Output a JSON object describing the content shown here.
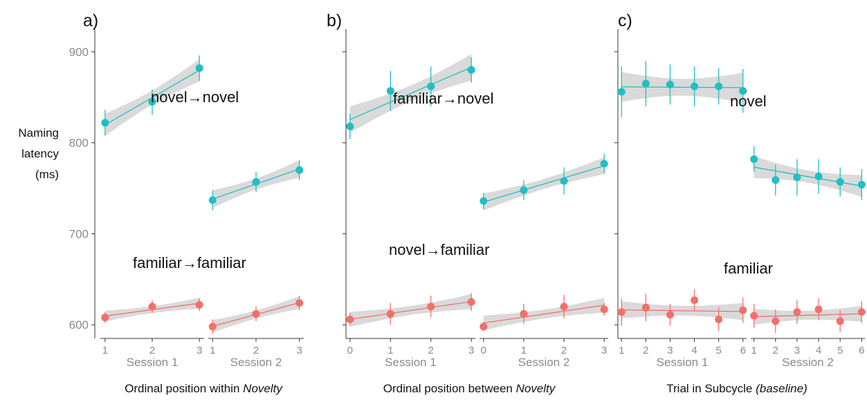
{
  "y_axis_label": [
    "Naming",
    "latency",
    "(ms)"
  ],
  "colors": {
    "novel": "#1fbfc3",
    "familiar": "#f0706a",
    "band": "#d4d4d4",
    "axis": "#333333"
  },
  "chart_data": [
    {
      "type": "scatter",
      "panel_label": "a)",
      "xlabel": "Ordinal position within",
      "xlabel_italic": "Novelty",
      "ylim": [
        585,
        925
      ],
      "yticks": [
        600,
        700,
        800,
        900
      ],
      "show_y_tick_labels": true,
      "facets": [
        {
          "label": "Session 1",
          "x": [
            1,
            2,
            3
          ],
          "xlim": [
            0.9,
            3.1
          ],
          "series": [
            {
              "group": "novel",
              "values": [
                822,
                845,
                882
              ],
              "err_lo": [
                14,
                14,
                14
              ],
              "err_hi": [
                14,
                14,
                14
              ]
            },
            {
              "group": "familiar",
              "values": [
                608,
                620,
                622
              ],
              "err_lo": [
                6,
                7,
                7
              ],
              "err_hi": [
                6,
                7,
                7
              ]
            }
          ]
        },
        {
          "label": "Session 2",
          "x": [
            1,
            2,
            3
          ],
          "xlim": [
            0.9,
            3.1
          ],
          "series": [
            {
              "group": "novel",
              "values": [
                737,
                757,
                770
              ],
              "err_lo": [
                11,
                11,
                11
              ],
              "err_hi": [
                11,
                11,
                11
              ]
            },
            {
              "group": "familiar",
              "values": [
                598,
                612,
                624
              ],
              "err_lo": [
                8,
                8,
                8
              ],
              "err_hi": [
                8,
                8,
                8
              ]
            }
          ]
        }
      ],
      "annotations": [
        {
          "from": "novel",
          "to": "novel"
        },
        {
          "from": "familiar",
          "to": "familiar"
        }
      ]
    },
    {
      "type": "scatter",
      "panel_label": "b)",
      "xlabel": "Ordinal position between",
      "xlabel_italic": "Novelty",
      "ylim": [
        585,
        925
      ],
      "yticks": [
        600,
        700,
        800,
        900
      ],
      "show_y_tick_labels": false,
      "facets": [
        {
          "label": "Session 1",
          "x": [
            0,
            1,
            2,
            3
          ],
          "xlim": [
            -0.1,
            3.1
          ],
          "series": [
            {
              "group": "novel",
              "values": [
                818,
                857,
                862,
                880
              ],
              "err_lo": [
                14,
                22,
                22,
                14
              ],
              "err_hi": [
                14,
                22,
                22,
                14
              ]
            },
            {
              "group": "familiar",
              "values": [
                606,
                612,
                620,
                625
              ],
              "err_lo": [
                7,
                12,
                12,
                10
              ],
              "err_hi": [
                7,
                12,
                12,
                10
              ]
            }
          ]
        },
        {
          "label": "Session 2",
          "x": [
            0,
            1,
            2,
            3
          ],
          "xlim": [
            -0.1,
            3.1
          ],
          "series": [
            {
              "group": "novel",
              "values": [
                736,
                748,
                758,
                777
              ],
              "err_lo": [
                9,
                11,
                15,
                11
              ],
              "err_hi": [
                9,
                11,
                15,
                11
              ]
            },
            {
              "group": "familiar",
              "values": [
                598,
                612,
                620,
                617
              ],
              "err_lo": [
                5,
                11,
                13,
                7
              ],
              "err_hi": [
                5,
                11,
                13,
                7
              ]
            }
          ]
        }
      ],
      "annotations": [
        {
          "from": "familiar",
          "to": "novel"
        },
        {
          "from": "novel",
          "to": "familiar"
        }
      ]
    },
    {
      "type": "scatter",
      "panel_label": "c)",
      "xlabel": "Trial in Subcycle",
      "xlabel_italic": "(baseline)",
      "ylim": [
        585,
        925
      ],
      "yticks": [
        600,
        700,
        800,
        900
      ],
      "show_y_tick_labels": false,
      "facets": [
        {
          "label": "Session 1",
          "x": [
            1,
            2,
            3,
            4,
            5,
            6
          ],
          "xlim": [
            0.85,
            6.15
          ],
          "series": [
            {
              "group": "novel",
              "values": [
                856,
                865,
                864,
                862,
                862,
                857
              ],
              "err_lo": [
                28,
                25,
                22,
                22,
                20,
                24
              ],
              "err_hi": [
                28,
                25,
                22,
                22,
                20,
                24
              ]
            },
            {
              "group": "familiar",
              "values": [
                614,
                619,
                611,
                627,
                606,
                616
              ],
              "err_lo": [
                15,
                15,
                12,
                12,
                13,
                14
              ],
              "err_hi": [
                15,
                15,
                12,
                12,
                13,
                14
              ]
            }
          ]
        },
        {
          "label": "Session 2",
          "x": [
            1,
            2,
            3,
            4,
            5,
            6
          ],
          "xlim": [
            0.85,
            6.15
          ],
          "series": [
            {
              "group": "novel",
              "values": [
                782,
                759,
                762,
                763,
                757,
                754
              ],
              "err_lo": [
                14,
                17,
                20,
                19,
                16,
                17
              ],
              "err_hi": [
                14,
                17,
                20,
                19,
                16,
                17
              ]
            },
            {
              "group": "familiar",
              "values": [
                610,
                604,
                614,
                617,
                604,
                614
              ],
              "err_lo": [
                13,
                13,
                13,
                12,
                12,
                12
              ],
              "err_hi": [
                13,
                13,
                13,
                12,
                12,
                12
              ]
            }
          ]
        }
      ],
      "annotations": [
        {
          "text": "novel"
        },
        {
          "text": "familiar"
        }
      ]
    }
  ]
}
